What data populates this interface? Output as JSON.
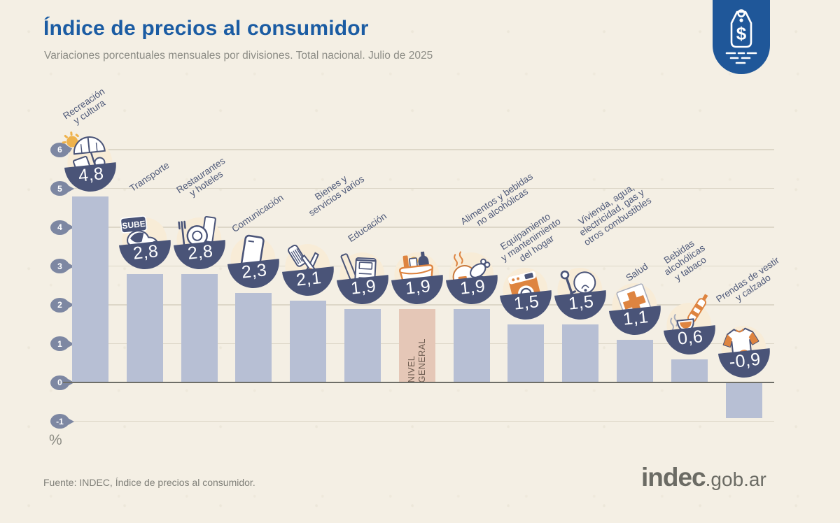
{
  "header": {
    "title": "Índice de precios al consumidor",
    "subtitle": "Variaciones porcentuales mensuales por divisiones. Total nacional. Julio de 2025"
  },
  "tag_badge": {
    "icon": "price-tag-icon",
    "symbol": "$"
  },
  "chart_data": {
    "type": "bar",
    "title": "Índice de precios al consumidor",
    "subtitle": "Variaciones porcentuales mensuales por divisiones. Total nacional. Julio de 2025",
    "xlabel": "",
    "ylabel": "%",
    "ylim": [
      -1,
      6
    ],
    "yticks": [
      6,
      5,
      4,
      3,
      2,
      1,
      0,
      -1
    ],
    "grid": true,
    "categories": [
      [
        "Recreación",
        "y cultura"
      ],
      [
        "Transporte"
      ],
      [
        "Restaurantes",
        "y hoteles"
      ],
      [
        "Comunicación"
      ],
      [
        "Bienes y",
        "servicios varios"
      ],
      [
        "Educación"
      ],
      [
        "NIVEL GENERAL"
      ],
      [
        "Alimentos y bebidas",
        "no alcohólicas"
      ],
      [
        "Equipamiento",
        "y mantenimiento",
        "del hogar"
      ],
      [
        "Vivienda, agua,",
        "electricidad, gas y",
        "otros combustibles"
      ],
      [
        "Salud"
      ],
      [
        "Bebidas",
        "alcohólicas",
        "y tabaco"
      ],
      [
        "Prendas de vestir",
        "y calzado"
      ]
    ],
    "values": [
      4.8,
      2.8,
      2.8,
      2.3,
      2.1,
      1.9,
      1.9,
      1.9,
      1.5,
      1.5,
      1.1,
      0.6,
      -0.9
    ],
    "value_labels": [
      "4,8",
      "2,8",
      "2,8",
      "2,3",
      "2,1",
      "1,9",
      "1,9",
      "1,9",
      "1,5",
      "1,5",
      "1,1",
      "0,6",
      "-0,9"
    ],
    "icons": [
      "sun-umbrella-icon",
      "sube-card-scooter-icon",
      "restaurant-plate-cutlery-icon",
      "smartphone-icon",
      "comb-scissors-icon",
      "notebook-pencil-icon",
      "shopping-basket-icon",
      "roast-chicken-plate-icon",
      "washing-machine-icon",
      "lightbulb-key-icon",
      "first-aid-cross-icon",
      "wine-bottle-glass-icon",
      "tshirt-sneaker-icon"
    ],
    "highlight_index": 6,
    "highlight_label": "NIVEL\nGENERAL",
    "legend": null
  },
  "footer": {
    "source": "Fuente: INDEC, Índice de precios al consumidor.",
    "logo_main": "indec",
    "logo_suffix": ".gob.ar"
  },
  "colors": {
    "background": "#f4efe4",
    "title_blue": "#1b5ca3",
    "bar": "#b7bfd4",
    "bar_highlight": "#e5c7b7",
    "badge_navy": "#4a5478",
    "icon_circle": "#f8ecd7",
    "accent_orange": "#de8440",
    "sun_yellow": "#eeb24c",
    "grid_line": "#ddd7c8",
    "zero_line": "#6e6e67",
    "tick_marker": "#7d87a2",
    "label_text": "#4d5878",
    "footer_gray": "#7f7f78",
    "tag_blue": "#1f5799"
  }
}
